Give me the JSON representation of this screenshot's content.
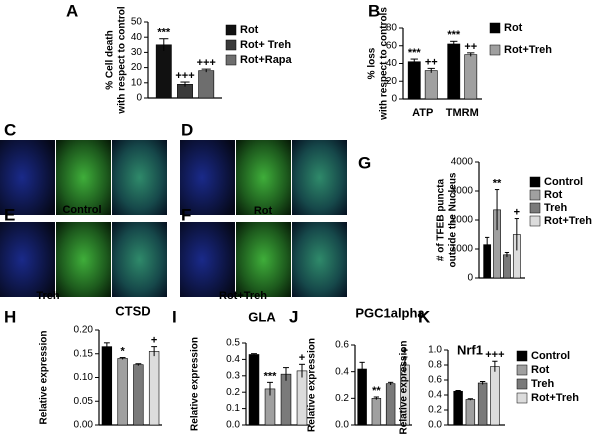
{
  "letters": [
    "A",
    "B",
    "C",
    "D",
    "E",
    "F",
    "G",
    "H",
    "I",
    "J",
    "K"
  ],
  "images": [
    "Control",
    "Rot",
    "Treh",
    "Rot+Treh"
  ],
  "chart_data": [
    {
      "type": "bar",
      "ylabel": [
        "% Cell death",
        "with respect to control"
      ],
      "categories": [
        null
      ],
      "series": [
        {
          "name": "Rot",
          "color": "#111111",
          "values": [
            35
          ],
          "errors": [
            4
          ],
          "annotations": [
            "***"
          ]
        },
        {
          "name": "Rot+ Treh",
          "color": "#3a3a3a",
          "values": [
            9
          ],
          "errors": [
            1.5
          ],
          "annotations": [
            "+++"
          ]
        },
        {
          "name": "Rot+Rapa",
          "color": "#6e6e6e",
          "values": [
            18
          ],
          "errors": [
            1
          ],
          "annotations": [
            "+++"
          ]
        }
      ],
      "ylim": [
        0,
        50
      ],
      "yticks": [
        0,
        10,
        20,
        30,
        40,
        50
      ],
      "legend": "right"
    },
    {
      "type": "bar",
      "ylabel": [
        "% loss",
        "with respect to controls"
      ],
      "categories": [
        "ATP",
        "TMRM"
      ],
      "series": [
        {
          "name": "Rot",
          "color": "#000000",
          "values": [
            42,
            62
          ],
          "errors": [
            3,
            3
          ],
          "annotations": [
            "***",
            "***"
          ]
        },
        {
          "name": "Rot+Treh",
          "color": "#a0a0a0",
          "values": [
            32,
            50
          ],
          "errors": [
            2.5,
            2
          ],
          "annotations": [
            "++",
            "++"
          ]
        }
      ],
      "ylim": [
        0,
        80
      ],
      "yticks": [
        0,
        20,
        40,
        60,
        80
      ],
      "legend": "right"
    },
    {
      "type": "bar",
      "ylabel": [
        "# of TFEB puncta",
        "outside the Nucleus"
      ],
      "categories": [
        null
      ],
      "series": [
        {
          "name": "Control",
          "color": "#000000",
          "values": [
            1150
          ],
          "errors": [
            250
          ],
          "annotations": [
            null
          ]
        },
        {
          "name": "Rot",
          "color": "#a0a0a0",
          "values": [
            2350
          ],
          "errors": [
            700
          ],
          "annotations": [
            "**"
          ]
        },
        {
          "name": "Treh",
          "color": "#7a7a7a",
          "values": [
            800
          ],
          "errors": [
            80
          ],
          "annotations": [
            null
          ]
        },
        {
          "name": "Rot+Treh",
          "color": "#dcdcdc",
          "values": [
            1500
          ],
          "errors": [
            550
          ],
          "annotations": [
            "+"
          ]
        }
      ],
      "ylim": [
        0,
        4000
      ],
      "yticks": [
        0,
        1000,
        2000,
        3000,
        4000
      ],
      "legend": "right"
    },
    {
      "type": "bar",
      "title": "CTSD",
      "ylabel": [
        "Relative expression"
      ],
      "categories": [
        null,
        null,
        null,
        null
      ],
      "values": [
        0.165,
        0.14,
        0.127,
        0.155
      ],
      "errors": [
        0.008,
        0.002,
        0.002,
        0.01
      ],
      "annotations": [
        null,
        "*",
        null,
        "+"
      ],
      "colors": [
        "#000000",
        "#a0a0a0",
        "#7a7a7a",
        "#dcdcdc"
      ],
      "ylim": [
        0,
        0.2
      ],
      "yticks": [
        {
          "value": 0,
          "label": "0.00"
        },
        0.05,
        {
          "value": 0.1,
          "label": "0.10"
        },
        0.15,
        {
          "value": 0.2,
          "label": "0.20"
        }
      ]
    },
    {
      "type": "bar",
      "title": "GLA",
      "ylabel": [
        "Relative expression"
      ],
      "categories": [
        null,
        null,
        null,
        null
      ],
      "values": [
        0.43,
        0.22,
        0.31,
        0.33
      ],
      "errors": [
        0.005,
        0.04,
        0.04,
        0.04
      ],
      "annotations": [
        null,
        "***",
        null,
        "+"
      ],
      "colors": [
        "#000000",
        "#a0a0a0",
        "#7a7a7a",
        "#dcdcdc"
      ],
      "ylim": [
        0,
        0.5
      ],
      "yticks": [
        {
          "value": 0,
          "label": "0.0"
        },
        0.1,
        0.2,
        0.3,
        0.4,
        0.5
      ]
    },
    {
      "type": "bar",
      "title": "PGC1alpha",
      "ylabel": [
        "Relative expression"
      ],
      "categories": [
        null,
        null,
        null,
        null
      ],
      "values": [
        0.42,
        0.2,
        0.31,
        0.45
      ],
      "errors": [
        0.05,
        0.01,
        0.01,
        0.06
      ],
      "annotations": [
        null,
        "**",
        null,
        "+"
      ],
      "colors": [
        "#000000",
        "#a0a0a0",
        "#7a7a7a",
        "#dcdcdc"
      ],
      "ylim": [
        0,
        0.6
      ],
      "yticks": [
        {
          "value": 0,
          "label": "0.0"
        },
        0.2,
        0.4,
        0.6
      ]
    },
    {
      "type": "bar",
      "title": "Nrf1",
      "ylabel": [
        "Relative expression"
      ],
      "categories": [
        null
      ],
      "series": [
        {
          "name": "Control",
          "color": "#000000",
          "values": [
            0.45
          ],
          "errors": [
            0.01
          ],
          "annotations": [
            null
          ]
        },
        {
          "name": "Rot",
          "color": "#a0a0a0",
          "values": [
            0.34
          ],
          "errors": [
            0.01
          ],
          "annotations": [
            null
          ]
        },
        {
          "name": "Treh",
          "color": "#7a7a7a",
          "values": [
            0.56
          ],
          "errors": [
            0.02
          ],
          "annotations": [
            null
          ]
        },
        {
          "name": "Rot+Treh",
          "color": "#dcdcdc",
          "values": [
            0.78
          ],
          "errors": [
            0.07
          ],
          "annotations": [
            "+++"
          ]
        }
      ],
      "ylim": [
        0,
        1
      ],
      "yticks": [
        {
          "value": 0,
          "label": "0.0"
        },
        0.2,
        0.4,
        0.6,
        0.8,
        {
          "value": 1,
          "label": "1.0"
        }
      ],
      "legend": "right"
    }
  ]
}
